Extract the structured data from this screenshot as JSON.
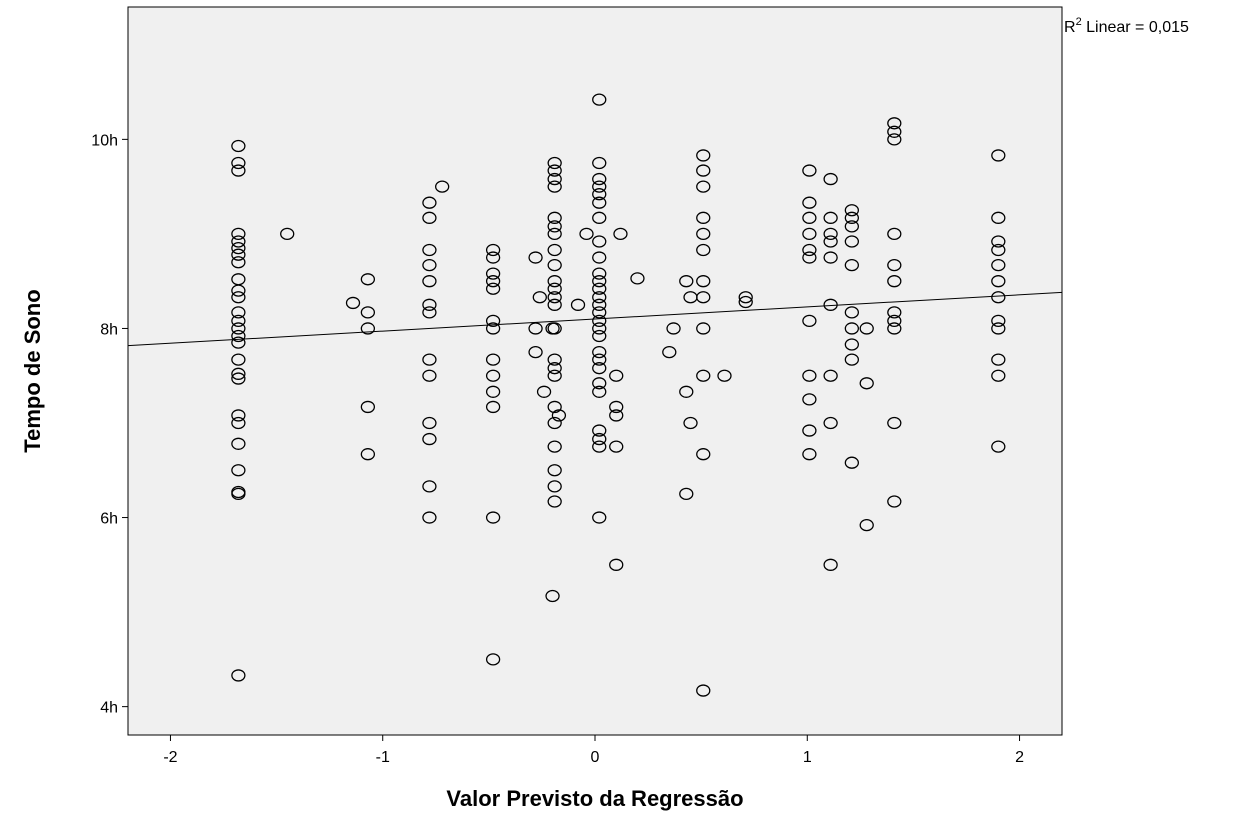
{
  "chart_data": {
    "type": "scatter",
    "title": "",
    "xlabel": "Valor Previsto da Regressão",
    "ylabel": "Tempo de Sono",
    "xlim": [
      -2.2,
      2.2
    ],
    "ylim": [
      3.7,
      11.4
    ],
    "x_ticks": [
      {
        "value": -2,
        "label": "-2"
      },
      {
        "value": -1,
        "label": "-1"
      },
      {
        "value": 0,
        "label": "0"
      },
      {
        "value": 1,
        "label": "1"
      },
      {
        "value": 2,
        "label": "2"
      }
    ],
    "y_ticks": [
      {
        "value": 4,
        "label": "4h"
      },
      {
        "value": 6,
        "label": "6h"
      },
      {
        "value": 8,
        "label": "8h"
      },
      {
        "value": 10,
        "label": "10h"
      }
    ],
    "grid": false,
    "background": "#f0f0f0",
    "fit_line": {
      "label_prefix": "R",
      "label_sup": "2",
      "label_suffix": " Linear = 0,015",
      "slope": 0.128,
      "intercept": 8.1
    },
    "points": [
      [
        -1.68,
        9.93
      ],
      [
        -1.68,
        9.75
      ],
      [
        -1.68,
        9.67
      ],
      [
        -1.68,
        9.0
      ],
      [
        -1.68,
        8.92
      ],
      [
        -1.68,
        8.85
      ],
      [
        -1.68,
        8.78
      ],
      [
        -1.68,
        8.7
      ],
      [
        -1.68,
        8.52
      ],
      [
        -1.68,
        8.4
      ],
      [
        -1.68,
        8.33
      ],
      [
        -1.68,
        8.17
      ],
      [
        -1.68,
        8.08
      ],
      [
        -1.68,
        8.0
      ],
      [
        -1.68,
        7.92
      ],
      [
        -1.68,
        7.85
      ],
      [
        -1.68,
        7.67
      ],
      [
        -1.68,
        7.52
      ],
      [
        -1.68,
        7.47
      ],
      [
        -1.68,
        7.08
      ],
      [
        -1.68,
        7.0
      ],
      [
        -1.68,
        6.78
      ],
      [
        -1.68,
        6.5
      ],
      [
        -1.68,
        6.25
      ],
      [
        -1.68,
        6.27
      ],
      [
        -1.68,
        4.33
      ],
      [
        -1.45,
        9.0
      ],
      [
        -1.14,
        8.27
      ],
      [
        -1.07,
        8.52
      ],
      [
        -1.07,
        8.17
      ],
      [
        -1.07,
        8.0
      ],
      [
        -1.07,
        7.17
      ],
      [
        -1.07,
        6.67
      ],
      [
        -0.78,
        9.33
      ],
      [
        -0.78,
        9.17
      ],
      [
        -0.78,
        8.83
      ],
      [
        -0.78,
        8.67
      ],
      [
        -0.78,
        8.5
      ],
      [
        -0.78,
        8.25
      ],
      [
        -0.78,
        8.17
      ],
      [
        -0.78,
        7.67
      ],
      [
        -0.78,
        7.5
      ],
      [
        -0.78,
        7.0
      ],
      [
        -0.78,
        6.83
      ],
      [
        -0.78,
        6.33
      ],
      [
        -0.78,
        6.0
      ],
      [
        -0.72,
        9.5
      ],
      [
        -0.48,
        8.83
      ],
      [
        -0.48,
        8.75
      ],
      [
        -0.48,
        8.58
      ],
      [
        -0.48,
        8.5
      ],
      [
        -0.48,
        8.42
      ],
      [
        -0.48,
        8.08
      ],
      [
        -0.48,
        8.0
      ],
      [
        -0.48,
        7.67
      ],
      [
        -0.48,
        7.5
      ],
      [
        -0.48,
        7.33
      ],
      [
        -0.48,
        7.17
      ],
      [
        -0.48,
        6.0
      ],
      [
        -0.48,
        4.5
      ],
      [
        -0.28,
        8.75
      ],
      [
        -0.28,
        8.0
      ],
      [
        -0.28,
        7.75
      ],
      [
        -0.26,
        8.33
      ],
      [
        -0.24,
        7.33
      ],
      [
        -0.2,
        8.0
      ],
      [
        -0.17,
        7.08
      ],
      [
        -0.19,
        9.75
      ],
      [
        -0.19,
        9.67
      ],
      [
        -0.19,
        9.58
      ],
      [
        -0.19,
        9.5
      ],
      [
        -0.19,
        9.17
      ],
      [
        -0.19,
        9.08
      ],
      [
        -0.19,
        9.0
      ],
      [
        -0.19,
        8.83
      ],
      [
        -0.19,
        8.67
      ],
      [
        -0.19,
        8.5
      ],
      [
        -0.19,
        8.42
      ],
      [
        -0.19,
        8.33
      ],
      [
        -0.19,
        8.25
      ],
      [
        -0.19,
        8.0
      ],
      [
        -0.19,
        7.67
      ],
      [
        -0.19,
        7.58
      ],
      [
        -0.19,
        7.5
      ],
      [
        -0.19,
        7.17
      ],
      [
        -0.19,
        7.0
      ],
      [
        -0.19,
        6.75
      ],
      [
        -0.19,
        6.5
      ],
      [
        -0.19,
        6.33
      ],
      [
        -0.19,
        6.17
      ],
      [
        -0.2,
        5.17
      ],
      [
        -0.08,
        8.25
      ],
      [
        -0.04,
        9.0
      ],
      [
        0.02,
        10.42
      ],
      [
        0.02,
        9.75
      ],
      [
        0.02,
        9.58
      ],
      [
        0.02,
        9.5
      ],
      [
        0.02,
        9.42
      ],
      [
        0.02,
        9.33
      ],
      [
        0.02,
        9.17
      ],
      [
        0.02,
        8.92
      ],
      [
        0.02,
        8.75
      ],
      [
        0.02,
        8.58
      ],
      [
        0.02,
        8.5
      ],
      [
        0.02,
        8.42
      ],
      [
        0.02,
        8.33
      ],
      [
        0.02,
        8.25
      ],
      [
        0.02,
        8.17
      ],
      [
        0.02,
        8.08
      ],
      [
        0.02,
        8.0
      ],
      [
        0.02,
        7.92
      ],
      [
        0.02,
        7.75
      ],
      [
        0.02,
        7.67
      ],
      [
        0.02,
        7.58
      ],
      [
        0.02,
        7.42
      ],
      [
        0.02,
        7.33
      ],
      [
        0.02,
        6.92
      ],
      [
        0.02,
        6.83
      ],
      [
        0.02,
        6.75
      ],
      [
        0.02,
        6.0
      ],
      [
        0.1,
        7.5
      ],
      [
        0.1,
        7.17
      ],
      [
        0.1,
        7.08
      ],
      [
        0.1,
        6.75
      ],
      [
        0.1,
        5.5
      ],
      [
        0.12,
        9.0
      ],
      [
        0.2,
        8.53
      ],
      [
        0.35,
        7.75
      ],
      [
        0.37,
        8.0
      ],
      [
        0.43,
        8.5
      ],
      [
        0.43,
        7.33
      ],
      [
        0.43,
        6.25
      ],
      [
        0.45,
        8.33
      ],
      [
        0.45,
        7.0
      ],
      [
        0.51,
        9.83
      ],
      [
        0.51,
        9.67
      ],
      [
        0.51,
        9.5
      ],
      [
        0.51,
        9.17
      ],
      [
        0.51,
        9.0
      ],
      [
        0.51,
        8.83
      ],
      [
        0.51,
        8.5
      ],
      [
        0.51,
        8.33
      ],
      [
        0.51,
        8.0
      ],
      [
        0.51,
        7.5
      ],
      [
        0.51,
        6.67
      ],
      [
        0.51,
        4.17
      ],
      [
        0.61,
        7.5
      ],
      [
        0.71,
        8.33
      ],
      [
        0.71,
        8.28
      ],
      [
        1.01,
        9.67
      ],
      [
        1.01,
        9.33
      ],
      [
        1.01,
        9.17
      ],
      [
        1.01,
        9.0
      ],
      [
        1.01,
        8.83
      ],
      [
        1.01,
        8.75
      ],
      [
        1.01,
        8.08
      ],
      [
        1.01,
        7.5
      ],
      [
        1.01,
        7.25
      ],
      [
        1.01,
        6.92
      ],
      [
        1.01,
        6.67
      ],
      [
        1.11,
        9.58
      ],
      [
        1.11,
        9.17
      ],
      [
        1.11,
        9.0
      ],
      [
        1.11,
        8.92
      ],
      [
        1.11,
        8.75
      ],
      [
        1.11,
        8.25
      ],
      [
        1.11,
        7.5
      ],
      [
        1.11,
        7.0
      ],
      [
        1.11,
        5.5
      ],
      [
        1.21,
        9.25
      ],
      [
        1.21,
        9.17
      ],
      [
        1.21,
        9.08
      ],
      [
        1.21,
        8.92
      ],
      [
        1.21,
        8.67
      ],
      [
        1.21,
        8.17
      ],
      [
        1.21,
        8.0
      ],
      [
        1.21,
        7.83
      ],
      [
        1.21,
        7.67
      ],
      [
        1.21,
        6.58
      ],
      [
        1.28,
        8.0
      ],
      [
        1.28,
        7.42
      ],
      [
        1.28,
        5.92
      ],
      [
        1.41,
        10.17
      ],
      [
        1.41,
        10.08
      ],
      [
        1.41,
        10.0
      ],
      [
        1.41,
        9.0
      ],
      [
        1.41,
        8.67
      ],
      [
        1.41,
        8.5
      ],
      [
        1.41,
        8.17
      ],
      [
        1.41,
        8.08
      ],
      [
        1.41,
        8.0
      ],
      [
        1.41,
        7.0
      ],
      [
        1.41,
        6.17
      ],
      [
        1.9,
        9.83
      ],
      [
        1.9,
        9.17
      ],
      [
        1.9,
        8.92
      ],
      [
        1.9,
        8.83
      ],
      [
        1.9,
        8.67
      ],
      [
        1.9,
        8.5
      ],
      [
        1.9,
        8.33
      ],
      [
        1.9,
        8.08
      ],
      [
        1.9,
        8.0
      ],
      [
        1.9,
        7.67
      ],
      [
        1.9,
        7.5
      ],
      [
        1.9,
        6.75
      ]
    ]
  }
}
